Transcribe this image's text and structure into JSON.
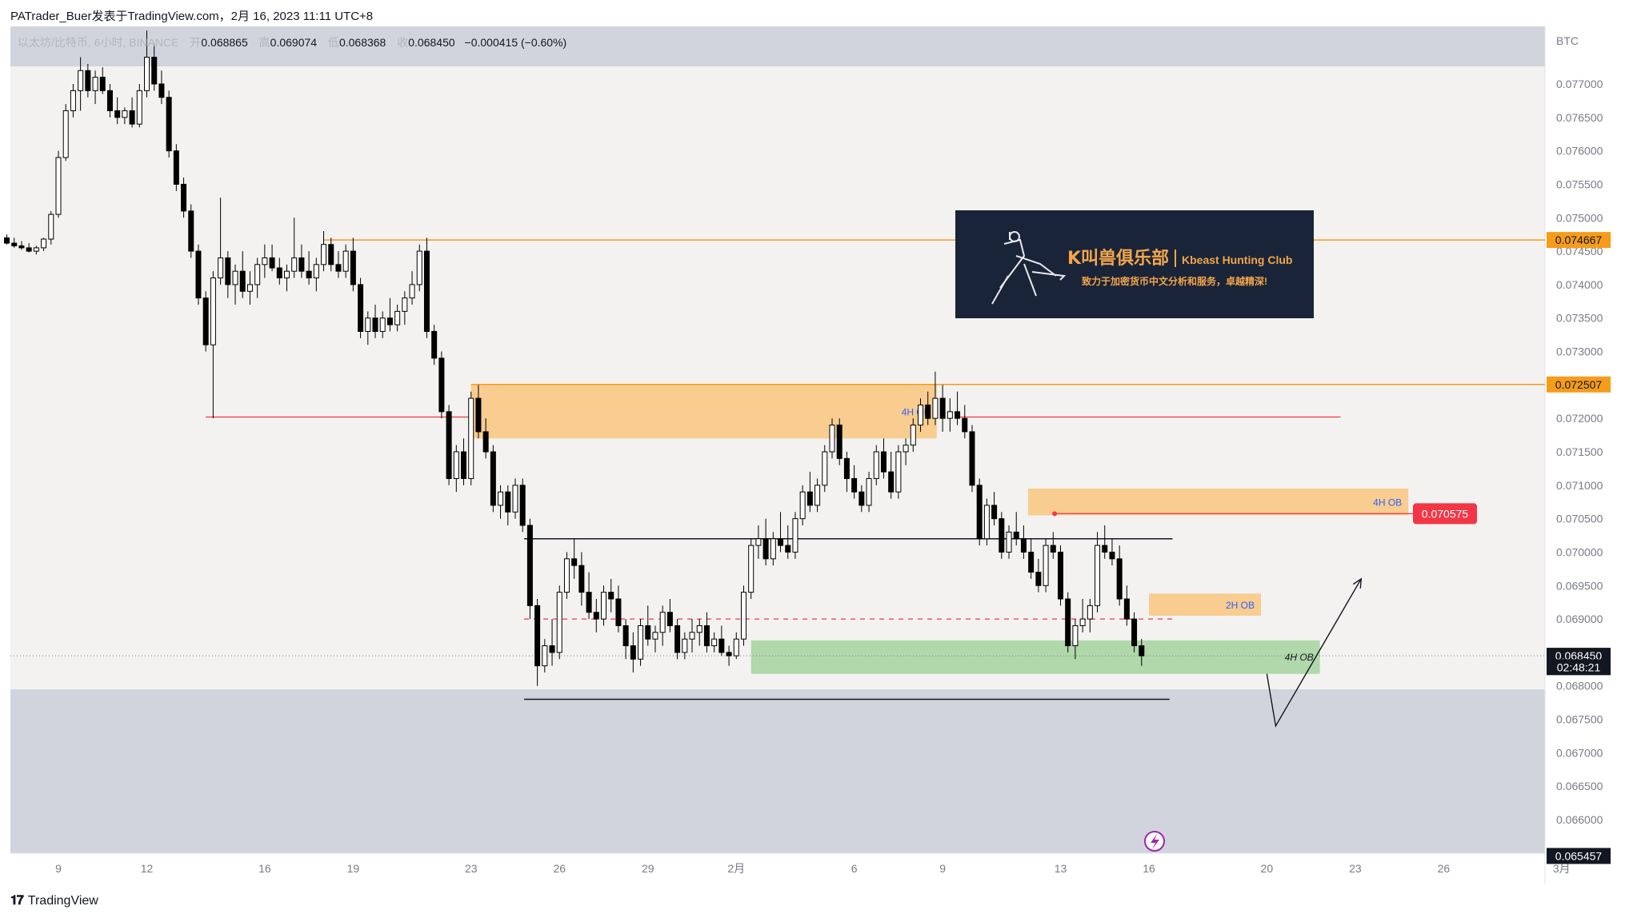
{
  "caption": {
    "author": "PATrader_Buer",
    "publish_text": "发表于TradingView.com，2月 16, 2023 11:11 UTC+8"
  },
  "legend": {
    "symbol": "以太坊/比特币, 6小时, BINANCE",
    "open_label": "开",
    "open": "0.068865",
    "high_label": "高",
    "high": "0.069074",
    "low_label": "低",
    "low": "0.068368",
    "close_label": "收",
    "close": "0.068450",
    "change": "−0.000415 (−0.60%)"
  },
  "colors": {
    "up": "#ffffff",
    "down": "#000000",
    "wick": "#000000",
    "orange_zone": "#f9c98a",
    "green_zone": "#a8d5a2",
    "orange_line": "#f59c1a",
    "red_line": "#f23645",
    "shade": "#d1d4dc",
    "plot_bg": "#f3f2f1",
    "axis_text": "#787b86"
  },
  "chart_data": {
    "type": "candlestick",
    "currency": "BTC",
    "y_ticks": [
      "0.077000",
      "0.076500",
      "0.076000",
      "0.075500",
      "0.075000",
      "0.074500",
      "0.074000",
      "0.073500",
      "0.073000",
      "0.072500",
      "0.072000",
      "0.071500",
      "0.071000",
      "0.070500",
      "0.070000",
      "0.069500",
      "0.069000",
      "0.068500",
      "0.068000",
      "0.067500",
      "0.067000",
      "0.066500",
      "0.066000"
    ],
    "x_ticks": [
      {
        "label": "9",
        "day": 0
      },
      {
        "label": "12",
        "day": 3
      },
      {
        "label": "16",
        "day": 7
      },
      {
        "label": "19",
        "day": 10
      },
      {
        "label": "23",
        "day": 14
      },
      {
        "label": "26",
        "day": 17
      },
      {
        "label": "29",
        "day": 20
      },
      {
        "label": "2月",
        "day": 23
      },
      {
        "label": "6",
        "day": 27
      },
      {
        "label": "9",
        "day": 30
      },
      {
        "label": "13",
        "day": 34
      },
      {
        "label": "16",
        "day": 37
      },
      {
        "label": "20",
        "day": 41
      },
      {
        "label": "23",
        "day": 44
      },
      {
        "label": "26",
        "day": 47
      },
      {
        "label": "3月",
        "day": 51
      }
    ],
    "price_labels": [
      {
        "text": "0.074667",
        "value": 0.074667,
        "style": "orange"
      },
      {
        "text": "0.072507",
        "value": 0.072507,
        "style": "orange"
      },
      {
        "text": "0.070575",
        "value": 0.070575,
        "style": "red"
      },
      {
        "text": "0.068450",
        "value": 0.06845,
        "style": "dark"
      },
      {
        "text": "02:48:21",
        "value": 0.06828,
        "style": "dark"
      },
      {
        "text": "0.065457",
        "value": 0.065457,
        "style": "dark"
      }
    ],
    "zones": [
      {
        "label": "4H OB",
        "x0": 14.0,
        "x1": 29.8,
        "top": 0.072507,
        "bottom": 0.0717,
        "color": "orange"
      },
      {
        "label": "4H OB",
        "x0": 32.9,
        "x1": 45.8,
        "top": 0.07095,
        "bottom": 0.07055,
        "color": "orange"
      },
      {
        "label": "2H OB",
        "x0": 37.0,
        "x1": 40.8,
        "top": 0.06938,
        "bottom": 0.06905,
        "color": "orange"
      },
      {
        "label": "4H OB",
        "x0": 23.5,
        "x1": 42.8,
        "top": 0.06868,
        "bottom": 0.06818,
        "color": "green"
      }
    ],
    "hlines": [
      {
        "value": 0.074667,
        "x0": 9.0,
        "x1": null,
        "style": "orange"
      },
      {
        "value": 0.072507,
        "x0": 14.0,
        "x1": null,
        "style": "orange"
      },
      {
        "value": 0.07202,
        "x0": 5.0,
        "x1": 14.0,
        "style": "red"
      },
      {
        "value": 0.07202,
        "x0": 30.5,
        "x1": 43.5,
        "style": "red"
      },
      {
        "value": 0.070575,
        "x0": 33.8,
        "x1": 47.8,
        "style": "red"
      },
      {
        "value": 0.0702,
        "x0": 15.8,
        "x1": 37.8,
        "style": "black"
      },
      {
        "value": 0.069,
        "x0": 15.8,
        "x1": 37.8,
        "style": "red-dash"
      },
      {
        "value": 0.0678,
        "x0": 15.8,
        "x1": 37.7,
        "style": "black"
      }
    ],
    "projection": [
      {
        "day": 41.0,
        "value": 0.06818
      },
      {
        "day": 41.3,
        "value": 0.0674
      },
      {
        "day": 44.2,
        "value": 0.0696
      }
    ],
    "candles": [
      [
        -1.75,
        0.0747,
        0.07475,
        0.0746,
        0.07462
      ],
      [
        -1.5,
        0.07462,
        0.0747,
        0.07455,
        0.07458
      ],
      [
        -1.25,
        0.07458,
        0.07465,
        0.07452,
        0.07455
      ],
      [
        -1.0,
        0.07455,
        0.07462,
        0.07448,
        0.0745
      ],
      [
        -0.75,
        0.0745,
        0.07458,
        0.07445,
        0.07455
      ],
      [
        -0.5,
        0.07455,
        0.0747,
        0.0745,
        0.07468
      ],
      [
        -0.25,
        0.07468,
        0.0751,
        0.0746,
        0.07505
      ],
      [
        0.0,
        0.07505,
        0.076,
        0.075,
        0.0759
      ],
      [
        0.25,
        0.0759,
        0.0767,
        0.07585,
        0.0766
      ],
      [
        0.5,
        0.0766,
        0.077,
        0.0765,
        0.0769
      ],
      [
        0.75,
        0.0769,
        0.0774,
        0.0766,
        0.0772
      ],
      [
        1.0,
        0.0772,
        0.0773,
        0.0768,
        0.0769
      ],
      [
        1.25,
        0.0769,
        0.0772,
        0.0767,
        0.0771
      ],
      [
        1.5,
        0.0771,
        0.07725,
        0.07685,
        0.0769
      ],
      [
        1.75,
        0.0769,
        0.077,
        0.0765,
        0.0766
      ],
      [
        2.0,
        0.0766,
        0.0768,
        0.0764,
        0.0765
      ],
      [
        2.25,
        0.0765,
        0.07665,
        0.0764,
        0.0766
      ],
      [
        2.5,
        0.0766,
        0.0768,
        0.07635,
        0.0764
      ],
      [
        2.75,
        0.0764,
        0.077,
        0.07635,
        0.0769
      ],
      [
        3.0,
        0.0769,
        0.0778,
        0.0768,
        0.0774
      ],
      [
        3.25,
        0.0774,
        0.0776,
        0.0769,
        0.077
      ],
      [
        3.5,
        0.077,
        0.0772,
        0.0767,
        0.0768
      ],
      [
        3.75,
        0.0768,
        0.0769,
        0.0759,
        0.076
      ],
      [
        4.0,
        0.076,
        0.0761,
        0.0754,
        0.0755
      ],
      [
        4.25,
        0.0755,
        0.0756,
        0.075,
        0.0751
      ],
      [
        4.5,
        0.0751,
        0.0752,
        0.0744,
        0.0745
      ],
      [
        4.75,
        0.0745,
        0.0746,
        0.0737,
        0.0738
      ],
      [
        5.0,
        0.0738,
        0.0739,
        0.073,
        0.0731
      ],
      [
        5.25,
        0.0731,
        0.0742,
        0.072,
        0.0741
      ],
      [
        5.5,
        0.0741,
        0.0753,
        0.074,
        0.0744
      ],
      [
        5.75,
        0.0744,
        0.0745,
        0.0738,
        0.074
      ],
      [
        6.0,
        0.074,
        0.0743,
        0.0737,
        0.0742
      ],
      [
        6.25,
        0.0742,
        0.0745,
        0.0738,
        0.0739
      ],
      [
        6.5,
        0.0739,
        0.0742,
        0.0737,
        0.074
      ],
      [
        6.75,
        0.074,
        0.0744,
        0.0738,
        0.0743
      ],
      [
        7.0,
        0.0743,
        0.0746,
        0.0741,
        0.0744
      ],
      [
        7.25,
        0.0744,
        0.0746,
        0.0742,
        0.07425
      ],
      [
        7.5,
        0.07425,
        0.0744,
        0.074,
        0.0741
      ],
      [
        7.75,
        0.0741,
        0.0743,
        0.0739,
        0.0742
      ],
      [
        8.0,
        0.0742,
        0.075,
        0.0741,
        0.0744
      ],
      [
        8.25,
        0.0744,
        0.0746,
        0.0741,
        0.0742
      ],
      [
        8.5,
        0.0742,
        0.0745,
        0.074,
        0.0741
      ],
      [
        8.75,
        0.0741,
        0.0744,
        0.0739,
        0.0743
      ],
      [
        9.0,
        0.0743,
        0.0748,
        0.0742,
        0.0746
      ],
      [
        9.25,
        0.0746,
        0.0747,
        0.0742,
        0.0743
      ],
      [
        9.5,
        0.0743,
        0.0745,
        0.0741,
        0.0742
      ],
      [
        9.75,
        0.0742,
        0.0746,
        0.0741,
        0.0745
      ],
      [
        10.0,
        0.0745,
        0.0747,
        0.0739,
        0.074
      ],
      [
        10.25,
        0.074,
        0.0741,
        0.0732,
        0.0733
      ],
      [
        10.5,
        0.0733,
        0.0736,
        0.0731,
        0.0735
      ],
      [
        10.75,
        0.0735,
        0.0737,
        0.0732,
        0.0733
      ],
      [
        11.0,
        0.0733,
        0.0736,
        0.0732,
        0.0735
      ],
      [
        11.25,
        0.0735,
        0.0738,
        0.0733,
        0.0734
      ],
      [
        11.5,
        0.0734,
        0.0737,
        0.0733,
        0.0736
      ],
      [
        11.75,
        0.0736,
        0.0739,
        0.0734,
        0.0738
      ],
      [
        12.0,
        0.0738,
        0.0742,
        0.0737,
        0.074
      ],
      [
        12.25,
        0.074,
        0.0746,
        0.0739,
        0.0745
      ],
      [
        12.5,
        0.0745,
        0.0747,
        0.0732,
        0.0733
      ],
      [
        12.75,
        0.0733,
        0.0734,
        0.0728,
        0.0729
      ],
      [
        13.0,
        0.0729,
        0.073,
        0.072,
        0.0721
      ],
      [
        13.25,
        0.0721,
        0.0722,
        0.071,
        0.0711
      ],
      [
        13.5,
        0.0711,
        0.0716,
        0.0709,
        0.0715
      ],
      [
        13.75,
        0.0715,
        0.0717,
        0.071,
        0.0711
      ],
      [
        14.0,
        0.0711,
        0.0724,
        0.071,
        0.0723
      ],
      [
        14.25,
        0.0723,
        0.0725,
        0.0717,
        0.0718
      ],
      [
        14.5,
        0.0718,
        0.072,
        0.0714,
        0.0715
      ],
      [
        14.75,
        0.0715,
        0.0716,
        0.0706,
        0.0707
      ],
      [
        15.0,
        0.0707,
        0.071,
        0.0705,
        0.0709
      ],
      [
        15.25,
        0.0709,
        0.071,
        0.0704,
        0.0706
      ],
      [
        15.5,
        0.0706,
        0.0711,
        0.0705,
        0.071
      ],
      [
        15.75,
        0.071,
        0.0711,
        0.0703,
        0.0704
      ],
      [
        16.0,
        0.0704,
        0.0705,
        0.069,
        0.0692
      ],
      [
        16.25,
        0.0692,
        0.0693,
        0.068,
        0.0683
      ],
      [
        16.5,
        0.0683,
        0.0687,
        0.0682,
        0.0686
      ],
      [
        16.75,
        0.0686,
        0.069,
        0.0683,
        0.0685
      ],
      [
        17.0,
        0.0685,
        0.0695,
        0.0684,
        0.0694
      ],
      [
        17.25,
        0.0694,
        0.07,
        0.0693,
        0.0699
      ],
      [
        17.5,
        0.0699,
        0.0702,
        0.0696,
        0.0698
      ],
      [
        17.75,
        0.0698,
        0.07,
        0.0692,
        0.0694
      ],
      [
        18.0,
        0.0694,
        0.0697,
        0.069,
        0.0691
      ],
      [
        18.25,
        0.0691,
        0.0693,
        0.0688,
        0.069
      ],
      [
        18.5,
        0.069,
        0.0695,
        0.0689,
        0.0694
      ],
      [
        18.75,
        0.0694,
        0.0696,
        0.0691,
        0.0693
      ],
      [
        19.0,
        0.0693,
        0.0695,
        0.0688,
        0.0689
      ],
      [
        19.25,
        0.0689,
        0.069,
        0.0684,
        0.0686
      ],
      [
        19.5,
        0.0686,
        0.0688,
        0.0682,
        0.0684
      ],
      [
        19.75,
        0.0684,
        0.069,
        0.0683,
        0.0689
      ],
      [
        20.0,
        0.0689,
        0.0692,
        0.0686,
        0.0687
      ],
      [
        20.25,
        0.0687,
        0.0689,
        0.0685,
        0.0688
      ],
      [
        20.5,
        0.0688,
        0.0692,
        0.0686,
        0.0691
      ],
      [
        20.75,
        0.0691,
        0.0693,
        0.0688,
        0.0689
      ],
      [
        21.0,
        0.0689,
        0.069,
        0.0684,
        0.0685
      ],
      [
        21.25,
        0.0685,
        0.0688,
        0.0684,
        0.0687
      ],
      [
        21.5,
        0.0687,
        0.069,
        0.0685,
        0.0688
      ],
      [
        21.75,
        0.0688,
        0.069,
        0.0686,
        0.0689
      ],
      [
        22.0,
        0.0689,
        0.0691,
        0.0685,
        0.0686
      ],
      [
        22.25,
        0.0686,
        0.0688,
        0.0685,
        0.0687
      ],
      [
        22.5,
        0.0687,
        0.0689,
        0.06845,
        0.0685
      ],
      [
        22.75,
        0.0685,
        0.0686,
        0.0683,
        0.06845
      ],
      [
        23.0,
        0.06845,
        0.0688,
        0.0684,
        0.0687
      ],
      [
        23.25,
        0.0687,
        0.0695,
        0.0686,
        0.0694
      ],
      [
        23.5,
        0.0694,
        0.0702,
        0.0693,
        0.0701
      ],
      [
        23.75,
        0.0701,
        0.0704,
        0.0699,
        0.0702
      ],
      [
        24.0,
        0.0702,
        0.0705,
        0.0698,
        0.0699
      ],
      [
        24.25,
        0.0699,
        0.0703,
        0.0698,
        0.0702
      ],
      [
        24.5,
        0.0702,
        0.0706,
        0.07,
        0.0701
      ],
      [
        24.75,
        0.0701,
        0.0704,
        0.0699,
        0.07
      ],
      [
        25.0,
        0.07,
        0.0706,
        0.0699,
        0.0705
      ],
      [
        25.25,
        0.0705,
        0.071,
        0.0704,
        0.0709
      ],
      [
        25.5,
        0.0709,
        0.0712,
        0.0706,
        0.0707
      ],
      [
        25.75,
        0.0707,
        0.0711,
        0.0706,
        0.071
      ],
      [
        26.0,
        0.071,
        0.0716,
        0.0709,
        0.0715
      ],
      [
        26.25,
        0.0715,
        0.072,
        0.0714,
        0.0719
      ],
      [
        26.5,
        0.0719,
        0.072,
        0.0713,
        0.0714
      ],
      [
        26.75,
        0.0714,
        0.0715,
        0.0709,
        0.0711
      ],
      [
        27.0,
        0.0711,
        0.0713,
        0.0708,
        0.0709
      ],
      [
        27.25,
        0.0709,
        0.071,
        0.0706,
        0.0707
      ],
      [
        27.5,
        0.0707,
        0.0712,
        0.0706,
        0.0711
      ],
      [
        27.75,
        0.0711,
        0.0716,
        0.071,
        0.0715
      ],
      [
        28.0,
        0.0715,
        0.0717,
        0.0711,
        0.0712
      ],
      [
        28.25,
        0.0712,
        0.0715,
        0.0708,
        0.0709
      ],
      [
        28.5,
        0.0709,
        0.0716,
        0.0708,
        0.0715
      ],
      [
        28.75,
        0.0715,
        0.0717,
        0.0713,
        0.0716
      ],
      [
        29.0,
        0.0716,
        0.072,
        0.0715,
        0.0719
      ],
      [
        29.25,
        0.0719,
        0.0723,
        0.0718,
        0.0722
      ],
      [
        29.5,
        0.0722,
        0.0724,
        0.0719,
        0.072
      ],
      [
        29.75,
        0.072,
        0.0727,
        0.0719,
        0.0723
      ],
      [
        30.0,
        0.0723,
        0.0725,
        0.0718,
        0.072
      ],
      [
        30.25,
        0.072,
        0.0723,
        0.0718,
        0.0721
      ],
      [
        30.5,
        0.0721,
        0.0724,
        0.0719,
        0.072
      ],
      [
        30.75,
        0.072,
        0.0722,
        0.0717,
        0.0718
      ],
      [
        31.0,
        0.0718,
        0.0719,
        0.0709,
        0.071
      ],
      [
        31.25,
        0.071,
        0.0711,
        0.0701,
        0.0702
      ],
      [
        31.5,
        0.0702,
        0.0708,
        0.0701,
        0.0707
      ],
      [
        31.75,
        0.0707,
        0.0709,
        0.0704,
        0.0705
      ],
      [
        32.0,
        0.0705,
        0.0706,
        0.0699,
        0.07
      ],
      [
        32.25,
        0.07,
        0.0704,
        0.0699,
        0.0703
      ],
      [
        32.5,
        0.0703,
        0.0706,
        0.0701,
        0.0702
      ],
      [
        32.75,
        0.0702,
        0.0704,
        0.0699,
        0.07
      ],
      [
        33.0,
        0.07,
        0.0702,
        0.0696,
        0.0697
      ],
      [
        33.25,
        0.0697,
        0.0699,
        0.0694,
        0.0695
      ],
      [
        33.5,
        0.0695,
        0.0702,
        0.0694,
        0.0701
      ],
      [
        33.75,
        0.0701,
        0.0703,
        0.0699,
        0.07
      ],
      [
        34.0,
        0.07,
        0.0701,
        0.0692,
        0.0693
      ],
      [
        34.25,
        0.0693,
        0.0694,
        0.0685,
        0.0686
      ],
      [
        34.5,
        0.0686,
        0.069,
        0.0684,
        0.0689
      ],
      [
        34.75,
        0.0689,
        0.0693,
        0.0688,
        0.069
      ],
      [
        35.0,
        0.069,
        0.0693,
        0.0688,
        0.0692
      ],
      [
        35.25,
        0.0692,
        0.0703,
        0.0691,
        0.0701
      ],
      [
        35.5,
        0.0701,
        0.0704,
        0.0699,
        0.07
      ],
      [
        35.75,
        0.07,
        0.0702,
        0.0698,
        0.0699
      ],
      [
        36.0,
        0.0699,
        0.0701,
        0.0692,
        0.0693
      ],
      [
        36.25,
        0.0693,
        0.0695,
        0.0689,
        0.069
      ],
      [
        36.5,
        0.069,
        0.0691,
        0.0685,
        0.0686
      ],
      [
        36.75,
        0.0686,
        0.0687,
        0.0683,
        0.06845
      ]
    ]
  },
  "annotation": {
    "banner_title": "K叫兽俱乐部",
    "banner_sub": "Kbeast Hunting Club",
    "banner_tag": "致力于加密货币中文分析和服务，卓越精深!"
  },
  "footer": {
    "brand": "TradingView"
  }
}
